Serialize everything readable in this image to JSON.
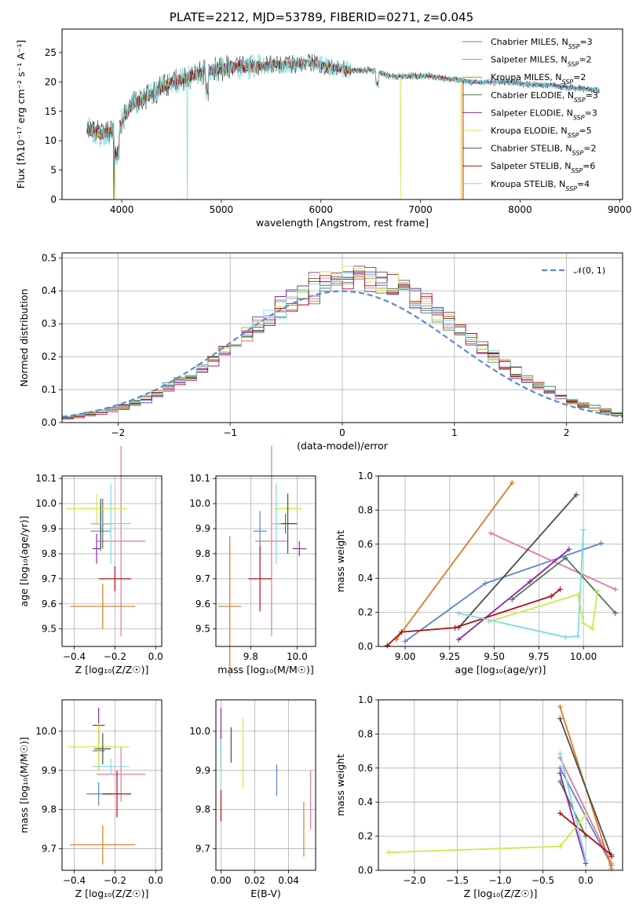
{
  "title": "PLATE=2212, MJD=53789, FIBERID=0271, z=0.045",
  "colors": {
    "Chabrier MILES": "#5b82d6",
    "Salpeter MILES": "#e7769f",
    "Kroupa MILES": "#e07a20",
    "Chabrier ELODIE": "#4f7a4f",
    "Salpeter ELODIE": "#8e24aa",
    "Kroupa ELODIE": "#cfe84a",
    "Chabrier STELIB": "#4d4d4d",
    "Salpeter STELIB": "#b01010",
    "Kroupa STELIB": "#7dd9dc"
  },
  "chart_data": [
    {
      "id": "spectrum",
      "type": "line",
      "xlabel": "wavelength [Angstrom, rest frame]",
      "ylabel": "Flux [fλ10⁻¹⁷ erg cm⁻² s⁻¹ A⁻¹]",
      "xlim": [
        3400,
        9030
      ],
      "ylim": [
        0,
        29
      ],
      "xticks": [
        "4000",
        "5000",
        "6000",
        "7000",
        "8000",
        "9000"
      ],
      "yticks": [
        "0",
        "5",
        "10",
        "15",
        "20",
        "25"
      ],
      "legend_loc": "upper-right",
      "series": [
        {
          "name": "Chabrier MILES, N",
          "sub": "SSP",
          "suffix": "=3"
        },
        {
          "name": "Salpeter MILES, N",
          "sub": "SSP",
          "suffix": "=2"
        },
        {
          "name": "Kroupa MILES, N",
          "sub": "SSP",
          "suffix": "=2"
        },
        {
          "name": "Chabrier ELODIE, N",
          "sub": "SSP",
          "suffix": "=3"
        },
        {
          "name": "Salpeter ELODIE, N",
          "sub": "SSP",
          "suffix": "=3"
        },
        {
          "name": "Kroupa ELODIE, N",
          "sub": "SSP",
          "suffix": "=5"
        },
        {
          "name": "Chabrier STELIB, N",
          "sub": "SSP",
          "suffix": "=2"
        },
        {
          "name": "Salpeter STELIB, N",
          "sub": "SSP",
          "suffix": "=6"
        },
        {
          "name": "Kroupa STELIB, N",
          "sub": "SSP",
          "suffix": "=4"
        }
      ],
      "continuum": [
        [
          3650,
          12
        ],
        [
          3800,
          11
        ],
        [
          3950,
          12
        ],
        [
          4100,
          16
        ],
        [
          4300,
          18
        ],
        [
          4500,
          20
        ],
        [
          4700,
          21
        ],
        [
          4900,
          22
        ],
        [
          5100,
          22.5
        ],
        [
          5300,
          22.5
        ],
        [
          5500,
          23
        ],
        [
          5700,
          23
        ],
        [
          5900,
          23.3
        ],
        [
          6100,
          22.5
        ],
        [
          6300,
          22
        ],
        [
          6500,
          22
        ],
        [
          6700,
          21
        ],
        [
          6900,
          21
        ],
        [
          7100,
          21
        ],
        [
          7300,
          20.5
        ],
        [
          7500,
          20
        ],
        [
          7700,
          20
        ],
        [
          7900,
          20
        ],
        [
          8100,
          19.5
        ],
        [
          8300,
          19.5
        ],
        [
          8500,
          19
        ],
        [
          8700,
          18.8
        ],
        [
          8800,
          18.5
        ]
      ]
    },
    {
      "id": "residuals",
      "type": "histogram",
      "xlabel": "(data-model)/error",
      "ylabel": "Normed distribution",
      "xlim": [
        -2.5,
        2.5
      ],
      "ylim": [
        0,
        0.515
      ],
      "xticks": [
        "−2",
        "−1",
        "0",
        "1",
        "2"
      ],
      "yticks": [
        "0.0",
        "0.1",
        "0.2",
        "0.3",
        "0.4",
        "0.5"
      ],
      "legend": "𝒩(0, 1)",
      "legend_loc": "upper-right",
      "bin_width": 0.1
    },
    {
      "id": "age-vs-Z",
      "type": "errorbar",
      "xlabel": "Z [log₁₀(Z/Z☉)]",
      "ylabel": "age  [log₁₀(age/yr)]",
      "xlim": [
        -0.46,
        0.03
      ],
      "ylim": [
        9.43,
        10.11
      ],
      "xticks": [
        "−0.4",
        "−0.2",
        "0.0"
      ],
      "yticks": [
        "9.5",
        "9.6",
        "9.7",
        "9.8",
        "9.9",
        "10.0",
        "10.1"
      ],
      "points": [
        {
          "model": "Chabrier MILES",
          "x": -0.27,
          "xerr": 0.05,
          "y": 9.89,
          "yerr": 0.08
        },
        {
          "model": "Salpeter MILES",
          "x": -0.17,
          "xerr": 0.12,
          "y": 9.85,
          "yerr": 0.38
        },
        {
          "model": "Kroupa MILES",
          "x": -0.26,
          "xerr": 0.16,
          "y": 9.59,
          "yerr": 0.09
        },
        {
          "model": "Chabrier ELODIE",
          "x": -0.26,
          "xerr": 0.05,
          "y": 9.92,
          "yerr": 0.1
        },
        {
          "model": "Salpeter ELODIE",
          "x": -0.29,
          "xerr": 0.02,
          "y": 9.82,
          "yerr": 0.06
        },
        {
          "model": "Kroupa ELODIE",
          "x": -0.29,
          "xerr": 0.15,
          "y": 9.98,
          "yerr": 0.06
        },
        {
          "model": "Chabrier STELIB",
          "x": -0.27,
          "xerr": 0.04,
          "y": 9.92,
          "yerr": 0.1
        },
        {
          "model": "Salpeter STELIB",
          "x": -0.2,
          "xerr": 0.08,
          "y": 9.7,
          "yerr": 0.05
        },
        {
          "model": "Kroupa STELIB",
          "x": -0.22,
          "xerr": 0.1,
          "y": 9.92,
          "yerr": 0.16
        }
      ]
    },
    {
      "id": "age-vs-mass",
      "type": "errorbar",
      "xlabel": "mass [log₁₀(M/M☉)]",
      "ylabel": "",
      "xlim": [
        9.65,
        10.08
      ],
      "ylim": [
        9.43,
        10.11
      ],
      "xticks": [
        "9.8",
        "10.0"
      ],
      "yticks": [
        "9.5",
        "9.6",
        "9.7",
        "9.8",
        "9.9",
        "10.0",
        "10.1"
      ],
      "points": [
        {
          "model": "Chabrier MILES",
          "x": 9.84,
          "xerr": 0.03,
          "y": 9.89,
          "yerr": 0.08
        },
        {
          "model": "Salpeter MILES",
          "x": 9.89,
          "xerr": 0.07,
          "y": 9.85,
          "yerr": 0.38
        },
        {
          "model": "Kroupa MILES",
          "x": 9.71,
          "xerr": 0.05,
          "y": 9.59,
          "yerr": 0.28
        },
        {
          "model": "Chabrier ELODIE",
          "x": 9.95,
          "xerr": 0.05,
          "y": 9.92,
          "yerr": 0.04
        },
        {
          "model": "Salpeter ELODIE",
          "x": 10.01,
          "xerr": 0.03,
          "y": 9.82,
          "yerr": 0.03
        },
        {
          "model": "Kroupa ELODIE",
          "x": 9.96,
          "xerr": 0.06,
          "y": 9.98,
          "yerr": 0.04
        },
        {
          "model": "Chabrier STELIB",
          "x": 9.96,
          "xerr": 0.04,
          "y": 9.92,
          "yerr": 0.12
        },
        {
          "model": "Salpeter STELIB",
          "x": 9.84,
          "xerr": 0.05,
          "y": 9.7,
          "yerr": 0.13
        },
        {
          "model": "Kroupa STELIB",
          "x": 9.91,
          "xerr": 0.02,
          "y": 9.92,
          "yerr": 0.16
        }
      ]
    },
    {
      "id": "weight-vs-age",
      "type": "line",
      "xlabel": "age  [log₁₀(age/yr)]",
      "ylabel": "mass weight",
      "xlim": [
        8.85,
        10.22
      ],
      "ylim": [
        0,
        1
      ],
      "xticks": [
        "9.00",
        "9.25",
        "9.50",
        "9.75",
        "10.00"
      ],
      "yticks": [
        "0.0",
        "0.2",
        "0.4",
        "0.6",
        "0.8",
        "1.0"
      ],
      "series": [
        {
          "model": "Chabrier MILES",
          "x": [
            9.0,
            9.45,
            10.1
          ],
          "y": [
            0.03,
            0.37,
            0.605
          ]
        },
        {
          "model": "Salpeter MILES",
          "x": [
            9.48,
            10.18
          ],
          "y": [
            0.665,
            0.335
          ]
        },
        {
          "model": "Kroupa MILES",
          "x": [
            8.95,
            9.6
          ],
          "y": [
            0.04,
            0.96
          ]
        },
        {
          "model": "Chabrier ELODIE",
          "x": [
            9.6,
            9.9,
            10.18
          ],
          "y": [
            0.275,
            0.52,
            0.195
          ]
        },
        {
          "model": "Salpeter ELODIE",
          "x": [
            9.3,
            9.7,
            9.92
          ],
          "y": [
            0.04,
            0.38,
            0.57
          ]
        },
        {
          "model": "Kroupa ELODIE",
          "x": [
            9.47,
            9.97,
            10.0,
            10.05,
            10.08
          ],
          "y": [
            0.145,
            0.305,
            0.135,
            0.105,
            0.325
          ]
        },
        {
          "model": "Chabrier STELIB",
          "x": [
            9.3,
            9.96
          ],
          "y": [
            0.11,
            0.89
          ]
        },
        {
          "model": "Salpeter STELIB",
          "x": [
            8.9,
            8.98,
            9.28,
            9.82,
            9.87
          ],
          "y": [
            0.005,
            0.085,
            0.11,
            0.295,
            0.335
          ]
        },
        {
          "model": "Kroupa STELIB",
          "x": [
            9.3,
            9.9,
            9.97,
            10.0
          ],
          "y": [
            0.195,
            0.055,
            0.06,
            0.685
          ]
        }
      ]
    },
    {
      "id": "mass-vs-Z",
      "type": "errorbar",
      "xlabel": "Z [log₁₀(Z/Z☉)]",
      "ylabel": "mass [log₁₀(M/M☉)]",
      "xlim": [
        -0.46,
        0.03
      ],
      "ylim": [
        9.645,
        10.08
      ],
      "xticks": [
        "−0.4",
        "−0.2",
        "0.0"
      ],
      "yticks": [
        "9.7",
        "9.8",
        "9.9",
        "10.0"
      ],
      "points": [
        {
          "model": "Chabrier MILES",
          "x": -0.28,
          "xerr": 0.06,
          "y": 9.84,
          "yerr": 0.03
        },
        {
          "model": "Salpeter MILES",
          "x": -0.17,
          "xerr": 0.12,
          "y": 9.89,
          "yerr": 0.07
        },
        {
          "model": "Kroupa MILES",
          "x": -0.26,
          "xerr": 0.16,
          "y": 9.71,
          "yerr": 0.05
        },
        {
          "model": "Chabrier ELODIE",
          "x": -0.28,
          "xerr": 0.03,
          "y": 9.95,
          "yerr": 0.05
        },
        {
          "model": "Salpeter ELODIE",
          "x": -0.28,
          "xerr": 0.03,
          "y": 10.015,
          "yerr": 0.045
        },
        {
          "model": "Kroupa ELODIE",
          "x": -0.28,
          "xerr": 0.15,
          "y": 9.96,
          "yerr": 0.06
        },
        {
          "model": "Chabrier STELIB",
          "x": -0.26,
          "xerr": 0.04,
          "y": 9.955,
          "yerr": 0.04
        },
        {
          "model": "Salpeter STELIB",
          "x": -0.19,
          "xerr": 0.07,
          "y": 9.84,
          "yerr": 0.06
        },
        {
          "model": "Kroupa STELIB",
          "x": -0.22,
          "xerr": 0.09,
          "y": 9.91,
          "yerr": 0.02
        }
      ]
    },
    {
      "id": "mass-vs-ebv",
      "type": "errorbar",
      "xlabel": "E(B-V)",
      "ylabel": "",
      "xlim": [
        -0.003,
        0.056
      ],
      "ylim": [
        9.645,
        10.08
      ],
      "xticks": [
        "0.00",
        "0.02",
        "0.04"
      ],
      "yticks": [
        "9.7",
        "9.8",
        "9.9",
        "10.0"
      ],
      "points": [
        {
          "model": "Chabrier MILES",
          "x": 0.033,
          "y": 9.875,
          "yerr": 0.04
        },
        {
          "model": "Salpeter MILES",
          "x": 0.053,
          "y": 9.825,
          "yerr": 0.075
        },
        {
          "model": "Kroupa MILES",
          "x": 0.049,
          "y": 9.75,
          "yerr": 0.07
        },
        {
          "model": "Chabrier ELODIE",
          "x": 0.0,
          "y": 9.95,
          "yerr": 0.05
        },
        {
          "model": "Salpeter ELODIE",
          "x": 0.0,
          "y": 10.01,
          "yerr": 0.05
        },
        {
          "model": "Kroupa ELODIE",
          "x": 0.013,
          "y": 9.945,
          "yerr": 0.09
        },
        {
          "model": "Chabrier STELIB",
          "x": 0.006,
          "y": 9.965,
          "yerr": 0.045
        },
        {
          "model": "Salpeter STELIB",
          "x": 0.0,
          "y": 9.81,
          "yerr": 0.04
        },
        {
          "model": "Kroupa STELIB",
          "x": 0.0,
          "y": 9.92,
          "yerr": 0.06
        }
      ]
    },
    {
      "id": "weight-vs-Z",
      "type": "line",
      "xlabel": "Z [log₁₀(Z/Z☉)]",
      "ylabel": "mass weight",
      "xlim": [
        -2.42,
        0.43
      ],
      "ylim": [
        0,
        1
      ],
      "xticks": [
        "−2.0",
        "−1.5",
        "−1.0",
        "−0.5",
        "0.0"
      ],
      "yticks": [
        "0.0",
        "0.2",
        "0.4",
        "0.6",
        "0.8",
        "1.0"
      ],
      "series": [
        {
          "model": "Chabrier MILES",
          "x": [
            -0.3,
            0.3
          ],
          "y": [
            0.6,
            0.03
          ]
        },
        {
          "model": "Salpeter MILES",
          "x": [
            -0.3,
            0.3
          ],
          "y": [
            0.66,
            0.04
          ]
        },
        {
          "model": "Kroupa MILES",
          "x": [
            -0.3,
            0.3
          ],
          "y": [
            0.96,
            0.01
          ]
        },
        {
          "model": "Chabrier ELODIE",
          "x": [
            -0.3,
            0.0
          ],
          "y": [
            0.52,
            0.2
          ]
        },
        {
          "model": "Salpeter ELODIE",
          "x": [
            -0.3,
            0.0
          ],
          "y": [
            0.57,
            0.04
          ]
        },
        {
          "model": "Kroupa ELODIE",
          "x": [
            -2.3,
            -0.3,
            0.0
          ],
          "y": [
            0.105,
            0.14,
            0.325
          ]
        },
        {
          "model": "Chabrier STELIB",
          "x": [
            -0.3,
            0.3
          ],
          "y": [
            0.89,
            0.08
          ]
        },
        {
          "model": "Salpeter STELIB",
          "x": [
            -0.3,
            0.3
          ],
          "y": [
            0.335,
            0.09
          ]
        },
        {
          "model": "Kroupa STELIB",
          "x": [
            -0.3,
            0.0
          ],
          "y": [
            0.685,
            0.06
          ]
        }
      ]
    }
  ]
}
